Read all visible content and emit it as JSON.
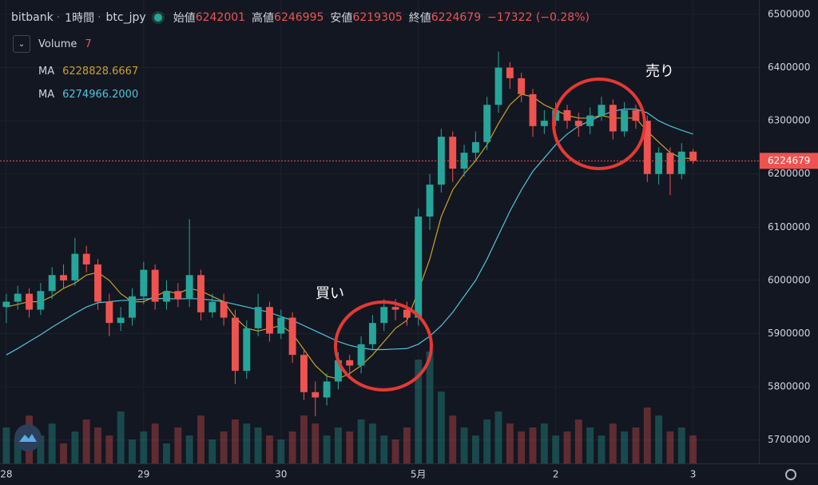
{
  "header": {
    "exchange": "bitbank",
    "interval": "1時間",
    "symbol": "btc_jpy",
    "open_label": "始値",
    "high_label": "高値",
    "low_label": "安値",
    "close_label": "終値",
    "change": "−17322 (−0.28%)"
  },
  "chart_data": {
    "type": "candlestick",
    "x": [
      0,
      2,
      4,
      6,
      8,
      10,
      12,
      14,
      16,
      18,
      20,
      22,
      24,
      26,
      28,
      30,
      32,
      34,
      36,
      38,
      40,
      42,
      44,
      46,
      48,
      50,
      52,
      54,
      56,
      58,
      60,
      62,
      64,
      66,
      68,
      70,
      72,
      74,
      76,
      78,
      80,
      82,
      84,
      86,
      88,
      90,
      92,
      94,
      96,
      98,
      100,
      102,
      104,
      106,
      108,
      110,
      112,
      114,
      116,
      118,
      120
    ],
    "open": [
      5950000,
      5960000,
      5975000,
      5945000,
      5980000,
      6010000,
      6000000,
      6050000,
      6030000,
      5960000,
      5920000,
      5930000,
      5970000,
      6020000,
      5960000,
      5980000,
      5965000,
      6010000,
      5940000,
      5960000,
      5930000,
      5830000,
      5910000,
      5950000,
      5900000,
      5930000,
      5860000,
      5790000,
      5780000,
      5810000,
      5850000,
      5840000,
      5880000,
      5920000,
      5950000,
      5945000,
      5930000,
      6120000,
      6180000,
      6270000,
      6210000,
      6240000,
      6260000,
      6330000,
      6400000,
      6380000,
      6350000,
      6290000,
      6300000,
      6320000,
      6300000,
      6290000,
      6310000,
      6330000,
      6280000,
      6320000,
      6300000,
      6200000,
      6240000,
      6200000,
      6242001
    ],
    "high": [
      5975000,
      5990000,
      5985000,
      5995000,
      6025000,
      6030000,
      6080000,
      6065000,
      6040000,
      5975000,
      5950000,
      5985000,
      6035000,
      6030000,
      6000000,
      5995000,
      6115000,
      6020000,
      5975000,
      5975000,
      5945000,
      5925000,
      5975000,
      5960000,
      5945000,
      5940000,
      5870000,
      5810000,
      5825000,
      5865000,
      5860000,
      5895000,
      5935000,
      5965000,
      5965000,
      5960000,
      6135000,
      6200000,
      6285000,
      6280000,
      6255000,
      6280000,
      6345000,
      6430000,
      6410000,
      6390000,
      6360000,
      6320000,
      6335000,
      6330000,
      6315000,
      6325000,
      6345000,
      6340000,
      6335000,
      6330000,
      6310000,
      6250000,
      6250000,
      6258000,
      6246995
    ],
    "low": [
      5920000,
      5945000,
      5930000,
      5935000,
      5965000,
      5985000,
      5990000,
      6015000,
      5945000,
      5895000,
      5905000,
      5915000,
      5955000,
      5945000,
      5945000,
      5950000,
      5950000,
      5925000,
      5930000,
      5915000,
      5805000,
      5815000,
      5895000,
      5885000,
      5890000,
      5845000,
      5775000,
      5745000,
      5765000,
      5795000,
      5820000,
      5825000,
      5870000,
      5905000,
      5925000,
      5915000,
      5915000,
      6095000,
      6165000,
      6185000,
      6195000,
      6225000,
      6245000,
      6315000,
      6360000,
      6335000,
      6270000,
      6275000,
      6290000,
      6285000,
      6270000,
      6275000,
      6300000,
      6265000,
      6270000,
      6285000,
      6185000,
      6180000,
      6160000,
      6190000,
      6219305
    ],
    "close": [
      5960000,
      5975000,
      5945000,
      5980000,
      6010000,
      6000000,
      6050000,
      6030000,
      5960000,
      5920000,
      5930000,
      5970000,
      6020000,
      5960000,
      5980000,
      5965000,
      6010000,
      5940000,
      5960000,
      5930000,
      5830000,
      5910000,
      5950000,
      5900000,
      5930000,
      5860000,
      5790000,
      5780000,
      5810000,
      5850000,
      5840000,
      5880000,
      5920000,
      5950000,
      5945000,
      5930000,
      6120000,
      6180000,
      6270000,
      6210000,
      6240000,
      6260000,
      6330000,
      6400000,
      6380000,
      6350000,
      6290000,
      6300000,
      6320000,
      6300000,
      6290000,
      6310000,
      6330000,
      6280000,
      6320000,
      6300000,
      6200000,
      6240000,
      6200000,
      6242001,
      6224679
    ],
    "up_color": "#26a69a",
    "down_color": "#ef5350",
    "volume": {
      "name": "Volume",
      "label": "7",
      "values": [
        9,
        6,
        12,
        7,
        10,
        5,
        8,
        11,
        9,
        7,
        13,
        6,
        8,
        10,
        5,
        9,
        7,
        12,
        6,
        8,
        11,
        10,
        9,
        7,
        6,
        8,
        12,
        10,
        7,
        9,
        8,
        11,
        10,
        7,
        6,
        9,
        26,
        28,
        18,
        12,
        9,
        7,
        11,
        13,
        10,
        8,
        9,
        10,
        7,
        8,
        11,
        9,
        7,
        10,
        8,
        9,
        14,
        12,
        8,
        9,
        7
      ],
      "vlim": [
        0,
        40
      ]
    },
    "series": [
      {
        "name": "MA",
        "legend_value": "6228828.6667",
        "color": "#c9a227",
        "values": [
          5950000,
          5955000,
          5960000,
          5960000,
          5970000,
          5985000,
          5995000,
          6010000,
          6015000,
          6000000,
          5975000,
          5960000,
          5960000,
          5970000,
          5980000,
          5975000,
          5985000,
          5980000,
          5970000,
          5960000,
          5930000,
          5910000,
          5905000,
          5910000,
          5915000,
          5900000,
          5870000,
          5840000,
          5820000,
          5815000,
          5825000,
          5840000,
          5860000,
          5885000,
          5910000,
          5925000,
          5980000,
          6040000,
          6120000,
          6170000,
          6200000,
          6225000,
          6255000,
          6295000,
          6330000,
          6350000,
          6345000,
          6330000,
          6320000,
          6310000,
          6305000,
          6305000,
          6310000,
          6305000,
          6305000,
          6305000,
          6280000,
          6260000,
          6240000,
          6230000,
          6228828.6667
        ]
      },
      {
        "name": "MA",
        "legend_value": "6274966.2000",
        "color": "#4fc3d9",
        "values": [
          5860000,
          5872000,
          5885000,
          5898000,
          5912000,
          5925000,
          5938000,
          5950000,
          5958000,
          5960000,
          5962000,
          5963000,
          5965000,
          5966000,
          5966000,
          5965000,
          5966000,
          5965000,
          5963000,
          5960000,
          5955000,
          5950000,
          5945000,
          5940000,
          5932000,
          5925000,
          5915000,
          5905000,
          5895000,
          5885000,
          5878000,
          5873000,
          5870000,
          5870000,
          5871000,
          5872000,
          5880000,
          5895000,
          5915000,
          5940000,
          5970000,
          6000000,
          6040000,
          6085000,
          6130000,
          6170000,
          6205000,
          6230000,
          6255000,
          6275000,
          6290000,
          6300000,
          6310000,
          6318000,
          6322000,
          6322000,
          6315000,
          6300000,
          6290000,
          6282000,
          6274966.2
        ]
      }
    ],
    "xlim": [
      -1.1,
      131.5
    ],
    "xticks": [
      {
        "value": 0,
        "label": "28"
      },
      {
        "value": 24,
        "label": "29"
      },
      {
        "value": 48,
        "label": "30"
      },
      {
        "value": 72,
        "label": "5月"
      },
      {
        "value": 96,
        "label": "2"
      },
      {
        "value": 120,
        "label": "3"
      }
    ],
    "ylim": [
      5656000,
      6527000
    ],
    "yticks": [
      5700000,
      5800000,
      5900000,
      6000000,
      6100000,
      6200000,
      6300000,
      6400000,
      6500000
    ],
    "grid": true,
    "price_line_color": "#ef5350",
    "annotations": [
      "買い",
      "売り"
    ]
  }
}
